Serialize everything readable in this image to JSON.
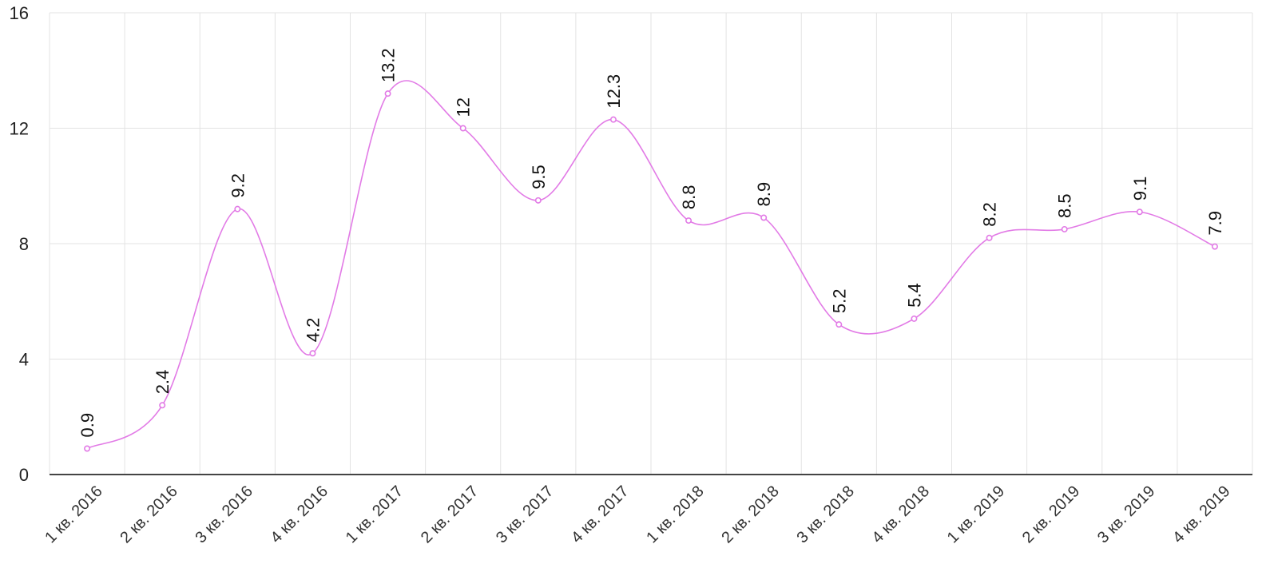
{
  "chart_data": {
    "type": "line",
    "categories": [
      "1 кв. 2016",
      "2 кв. 2016",
      "3 кв. 2016",
      "4 кв. 2016",
      "1 кв. 2017",
      "2 кв. 2017",
      "3 кв. 2017",
      "4 кв. 2017",
      "1 кв. 2018",
      "2 кв. 2018",
      "3 кв. 2018",
      "4 кв. 2018",
      "1 кв. 2019",
      "2 кв. 2019",
      "3 кв. 2019",
      "4 кв. 2019"
    ],
    "values": [
      0.9,
      2.4,
      9.2,
      4.2,
      13.2,
      12,
      9.5,
      12.3,
      8.8,
      8.9,
      5.2,
      5.4,
      8.2,
      8.5,
      9.1,
      7.9
    ],
    "labels": [
      "0.9",
      "2.4",
      "9.2",
      "4.2",
      "13.2",
      "12",
      "9.5",
      "12.3",
      "8.8",
      "8.9",
      "5.2",
      "5.4",
      "8.2",
      "8.5",
      "9.1",
      "7.9"
    ],
    "yticks": [
      "0",
      "4",
      "8",
      "12",
      "16"
    ],
    "ylim": [
      0,
      16
    ],
    "grid": true,
    "line_color": "#e27be6"
  }
}
